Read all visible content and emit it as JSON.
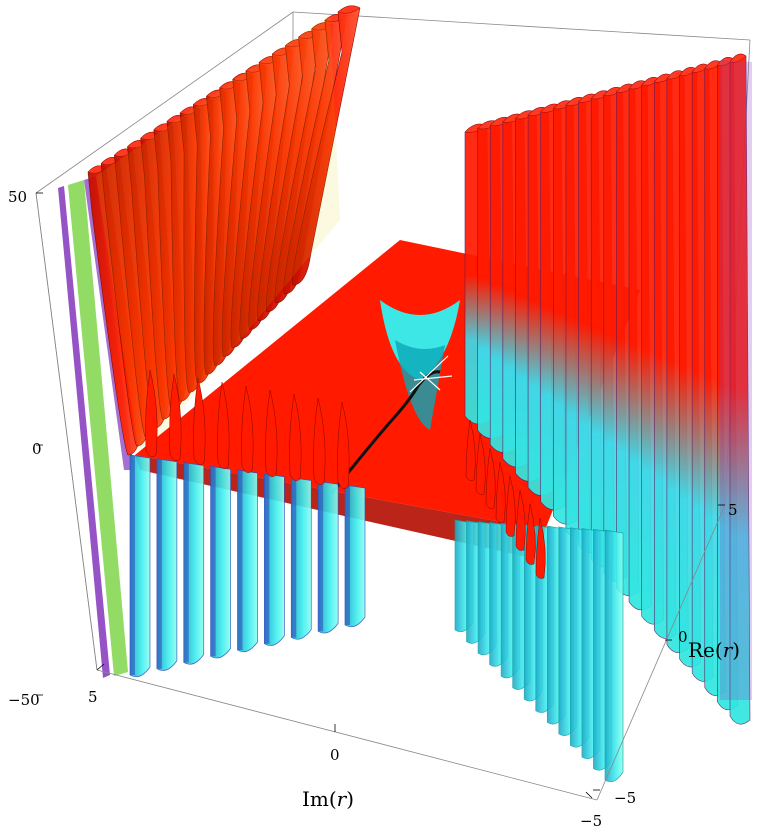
{
  "chart_data": {
    "type": "surface3d",
    "title": "",
    "z_axis": {
      "ticks": [
        "50",
        "0",
        "−50"
      ],
      "values": [
        50,
        0,
        -50
      ],
      "range": [
        -55,
        55
      ]
    },
    "im_axis": {
      "label_pre": "Im(",
      "label_var": "r",
      "label_post": ")",
      "ticks": [
        "5",
        "0",
        "−5"
      ],
      "values": [
        5,
        0,
        -5
      ],
      "range": [
        -5,
        5
      ]
    },
    "re_axis": {
      "label_pre": "Re(",
      "label_var": "r",
      "label_post": ")",
      "ticks": [
        "5",
        "0",
        "−5"
      ],
      "values": [
        5,
        0,
        -5
      ],
      "range": [
        -5,
        5
      ]
    },
    "back_fins": 20,
    "right_fins": 22,
    "left_front_fins": 9,
    "right_front_fins": 14,
    "colors": {
      "top": "#ff1a00",
      "top_dark": "#b30c00",
      "bottom": "#33f2f2",
      "bottom_dark": "#0aa8b8",
      "fin_left": "#8a40c0",
      "fin_green": "#7fd64a",
      "mesh_yellow": "#e0d000",
      "mesh_blue": "#3050c0",
      "curve": "#111111",
      "box": "#888888"
    }
  }
}
